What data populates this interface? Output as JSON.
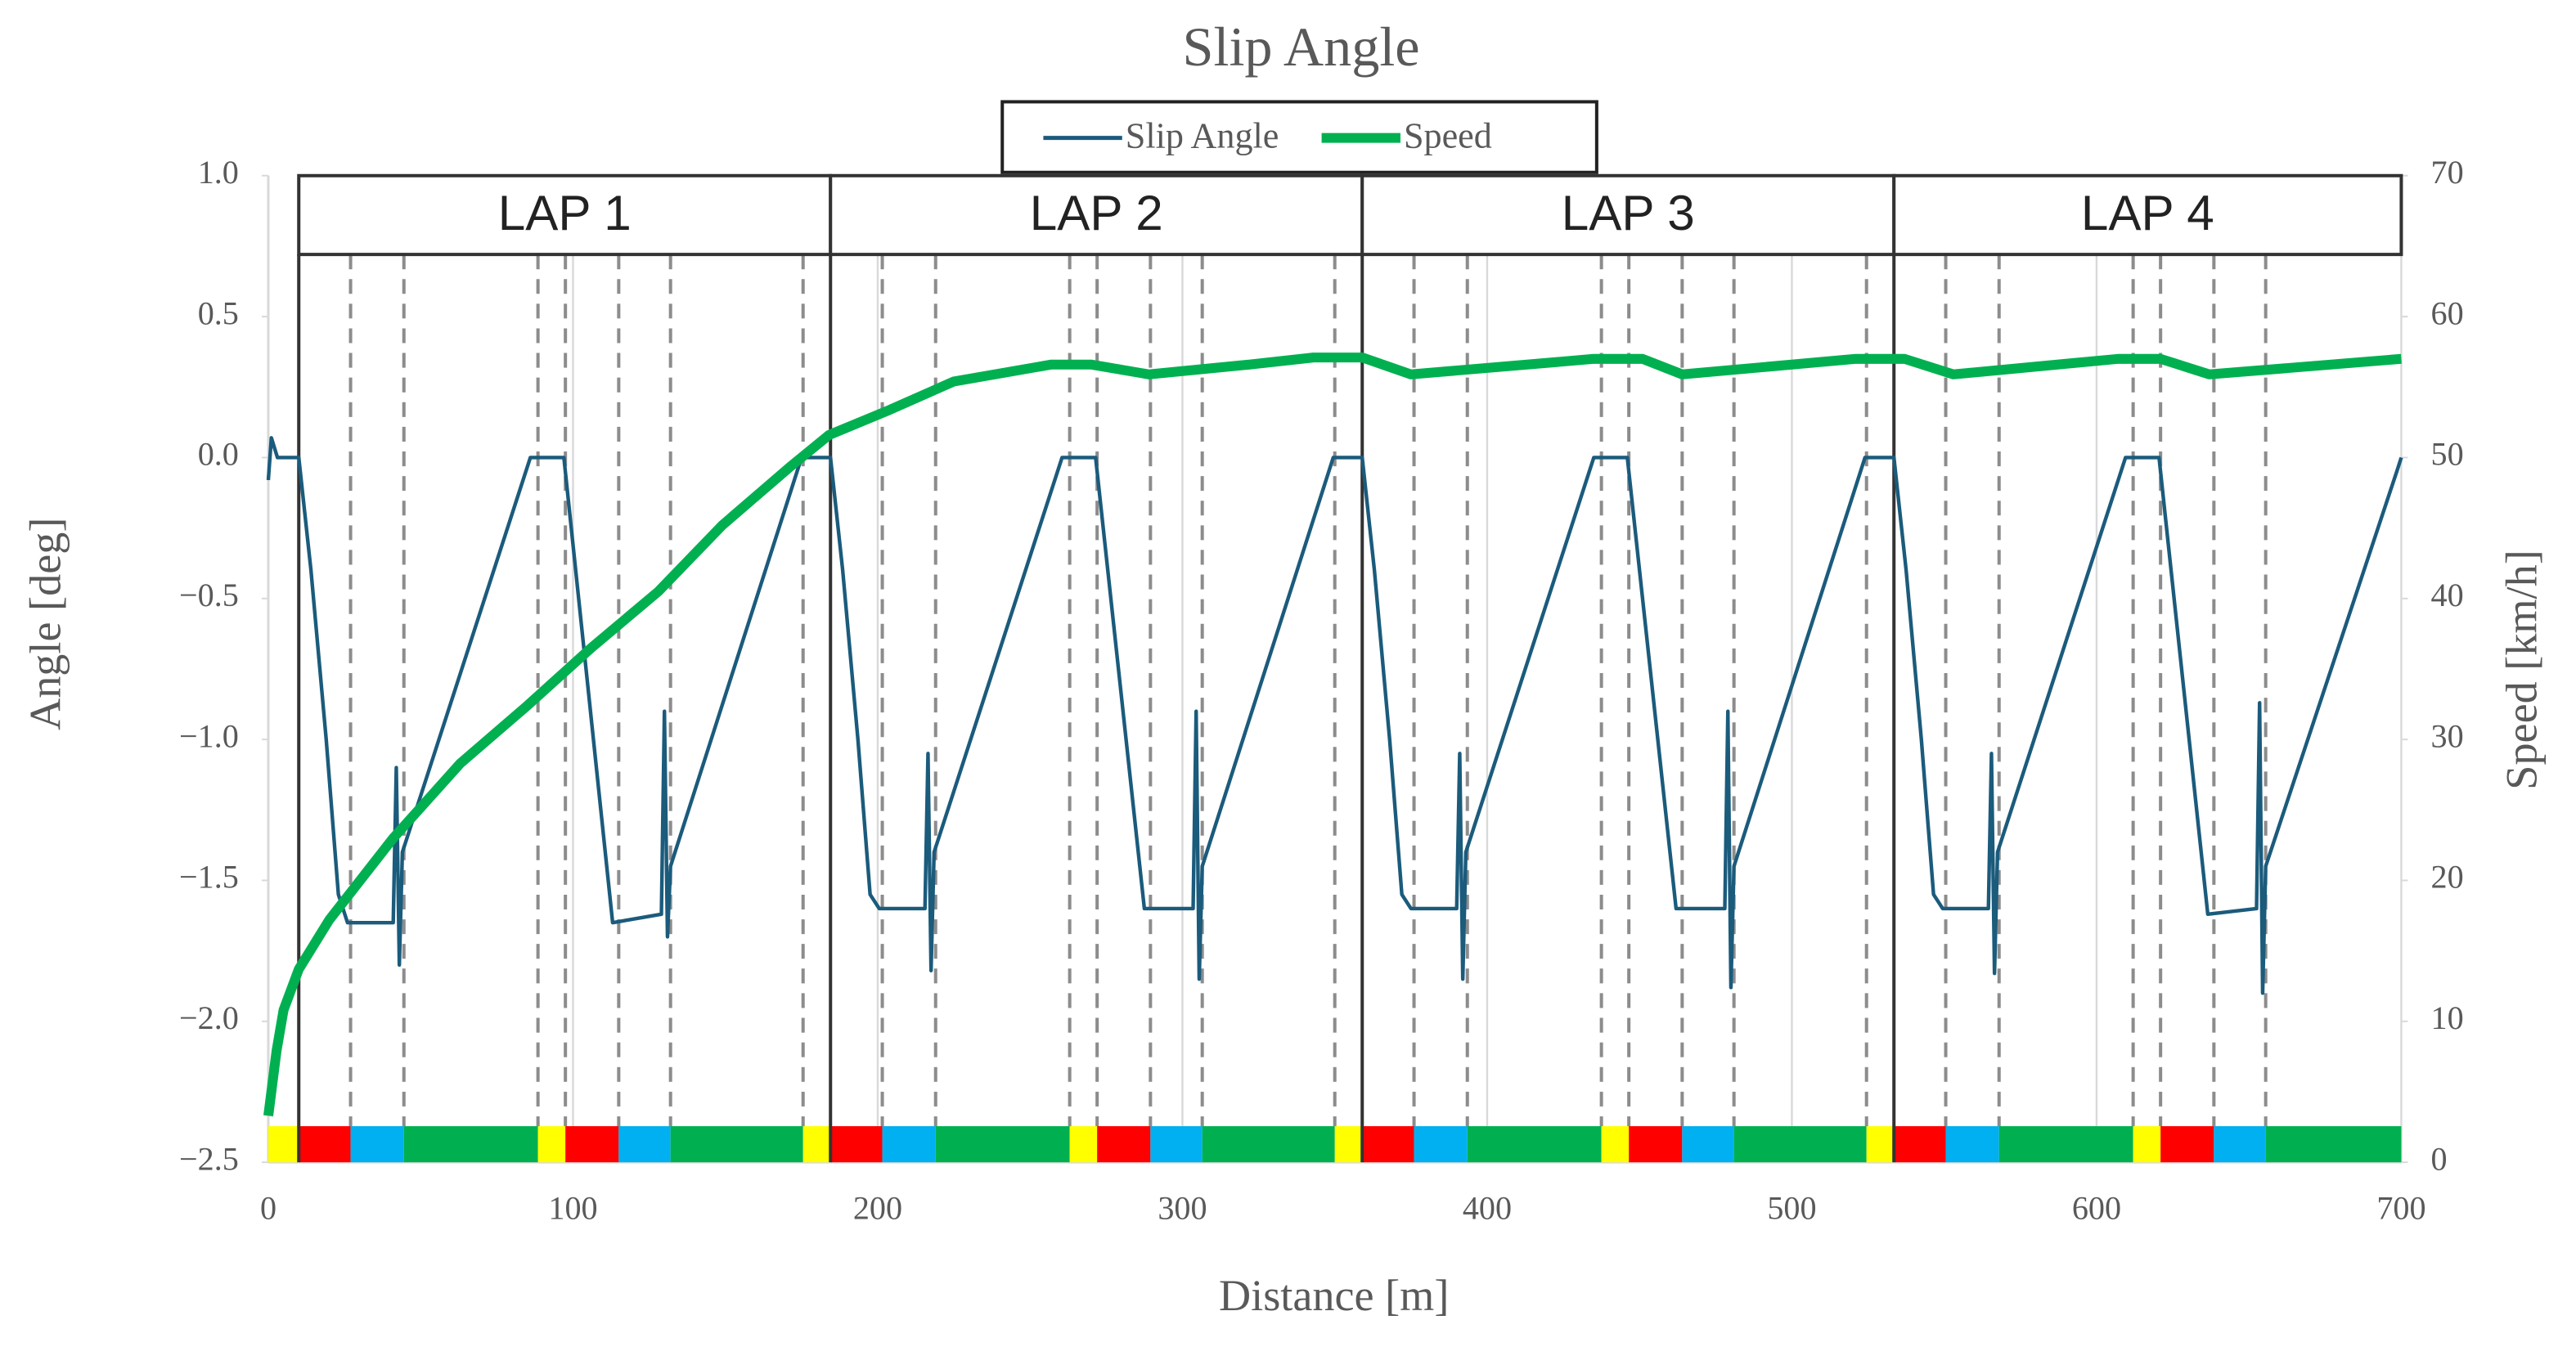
{
  "chart_data": {
    "type": "line",
    "title": "Slip Angle",
    "xlabel": "Distance [m]",
    "ylabel": "Angle [deg]",
    "y2label": "Speed [km/h]",
    "xlim": [
      0,
      700
    ],
    "xticks": [
      0,
      100,
      200,
      300,
      400,
      500,
      600,
      700
    ],
    "ylim": [
      -2.5,
      1
    ],
    "yticks": [
      {
        "value": -2.5,
        "label": "−2.5"
      },
      {
        "value": -2,
        "label": "−2.0"
      },
      {
        "value": -1.5,
        "label": "−1.5"
      },
      {
        "value": -1,
        "label": "−1.0"
      },
      {
        "value": -0.5,
        "label": "−0.5"
      },
      {
        "value": 0,
        "label": "0.0"
      },
      0.5,
      {
        "value": 1,
        "label": "1.0"
      }
    ],
    "y2lim": [
      0,
      70
    ],
    "y2ticks": [
      0,
      10,
      20,
      30,
      40,
      50,
      60,
      70
    ],
    "grid": "x",
    "legend": "top",
    "series": [
      {
        "name": "Slip Angle",
        "color": "#1b5b7c",
        "x": [
          0,
          1,
          3,
          10,
          14,
          19,
          23,
          26,
          41,
          42,
          43,
          44,
          86,
          97,
          113,
          129,
          130,
          131,
          132,
          175,
          184.5,
          188.5,
          193.5,
          197.5,
          200.5,
          215.5,
          216.5,
          217.5,
          218.5,
          260.5,
          271.5,
          287.5,
          303.5,
          304.5,
          305.5,
          306.5,
          349.5,
          359,
          363,
          368,
          372,
          375,
          390,
          391,
          392,
          393,
          435,
          446,
          462,
          478,
          479,
          480,
          481,
          524,
          533.5,
          537.5,
          542.5,
          546.5,
          549.5,
          564.5,
          565.5,
          566.5,
          567.5,
          609.5,
          620.5,
          636.5,
          652.5,
          653.5,
          654.5,
          655.5,
          698.5,
          700
        ],
        "values": [
          -0.08,
          0.07,
          0,
          0,
          -0.4,
          -1.0,
          -1.55,
          -1.65,
          -1.65,
          -1.1,
          -1.8,
          -1.4,
          0,
          0,
          -1.65,
          -1.62,
          -0.9,
          -1.7,
          -1.45,
          0,
          0,
          -0.4,
          -1.0,
          -1.55,
          -1.6,
          -1.6,
          -1.05,
          -1.82,
          -1.4,
          0,
          0,
          -1.6,
          -1.6,
          -0.9,
          -1.85,
          -1.45,
          0,
          0,
          -0.4,
          -1.0,
          -1.55,
          -1.6,
          -1.6,
          -1.05,
          -1.85,
          -1.4,
          0,
          0,
          -1.6,
          -1.6,
          -0.9,
          -1.88,
          -1.45,
          0,
          0,
          -0.4,
          -1.0,
          -1.55,
          -1.6,
          -1.6,
          -1.05,
          -1.83,
          -1.4,
          0,
          0,
          -1.62,
          -1.6,
          -0.87,
          -1.9,
          -1.45,
          -0.05,
          0
        ]
      },
      {
        "name": "Speed",
        "color": "#00b050",
        "axis": "y2",
        "x": [
          0,
          2.7,
          5,
          10,
          20,
          41,
          63,
          85,
          106,
          128,
          149,
          171,
          184,
          203,
          225,
          257,
          270,
          289,
          322,
          343,
          359,
          375,
          435,
          451,
          464,
          521,
          537,
          553,
          607,
          621,
          637,
          700
        ],
        "values": [
          3.3,
          7.9,
          10.8,
          13.7,
          17.2,
          23,
          28.3,
          32.4,
          36.5,
          40.5,
          45.2,
          49.3,
          51.6,
          53.3,
          55.4,
          56.6,
          56.6,
          55.9,
          56.6,
          57.1,
          57.1,
          55.9,
          57,
          57,
          55.9,
          57,
          57,
          55.9,
          57,
          57,
          55.9,
          57
        ]
      }
    ],
    "laps": [
      {
        "label": "LAP 1",
        "start": 10,
        "end": 184.5
      },
      {
        "label": "LAP 2",
        "start": 184.5,
        "end": 359
      },
      {
        "label": "LAP 3",
        "start": 359,
        "end": 533.5
      },
      {
        "label": "LAP 4",
        "start": 533.5,
        "end": 700
      }
    ],
    "segment_edges": [
      0,
      10,
      27,
      44.5,
      88.5,
      97.5,
      115,
      132,
      175.5,
      184.5,
      201.5,
      219,
      263,
      272,
      289.5,
      306.5,
      350,
      359,
      376,
      393.5,
      437.5,
      446.5,
      464,
      481,
      524.5,
      533.5,
      550.5,
      568,
      612,
      621,
      638.5,
      655.5,
      700
    ],
    "segment_colors": [
      "#ffff00",
      "#ff0000",
      "#00b0f0",
      "#00b050",
      "#ffff00",
      "#ff0000",
      "#00b0f0",
      "#00b050",
      "#ffff00",
      "#ff0000",
      "#00b0f0",
      "#00b050",
      "#ffff00",
      "#ff0000",
      "#00b0f0",
      "#00b050",
      "#ffff00",
      "#ff0000",
      "#00b0f0",
      "#00b050",
      "#ffff00",
      "#ff0000",
      "#00b0f0",
      "#00b050",
      "#ffff00",
      "#ff0000",
      "#00b0f0",
      "#00b050",
      "#ffff00",
      "#ff0000",
      "#00b0f0",
      "#00b050"
    ]
  }
}
